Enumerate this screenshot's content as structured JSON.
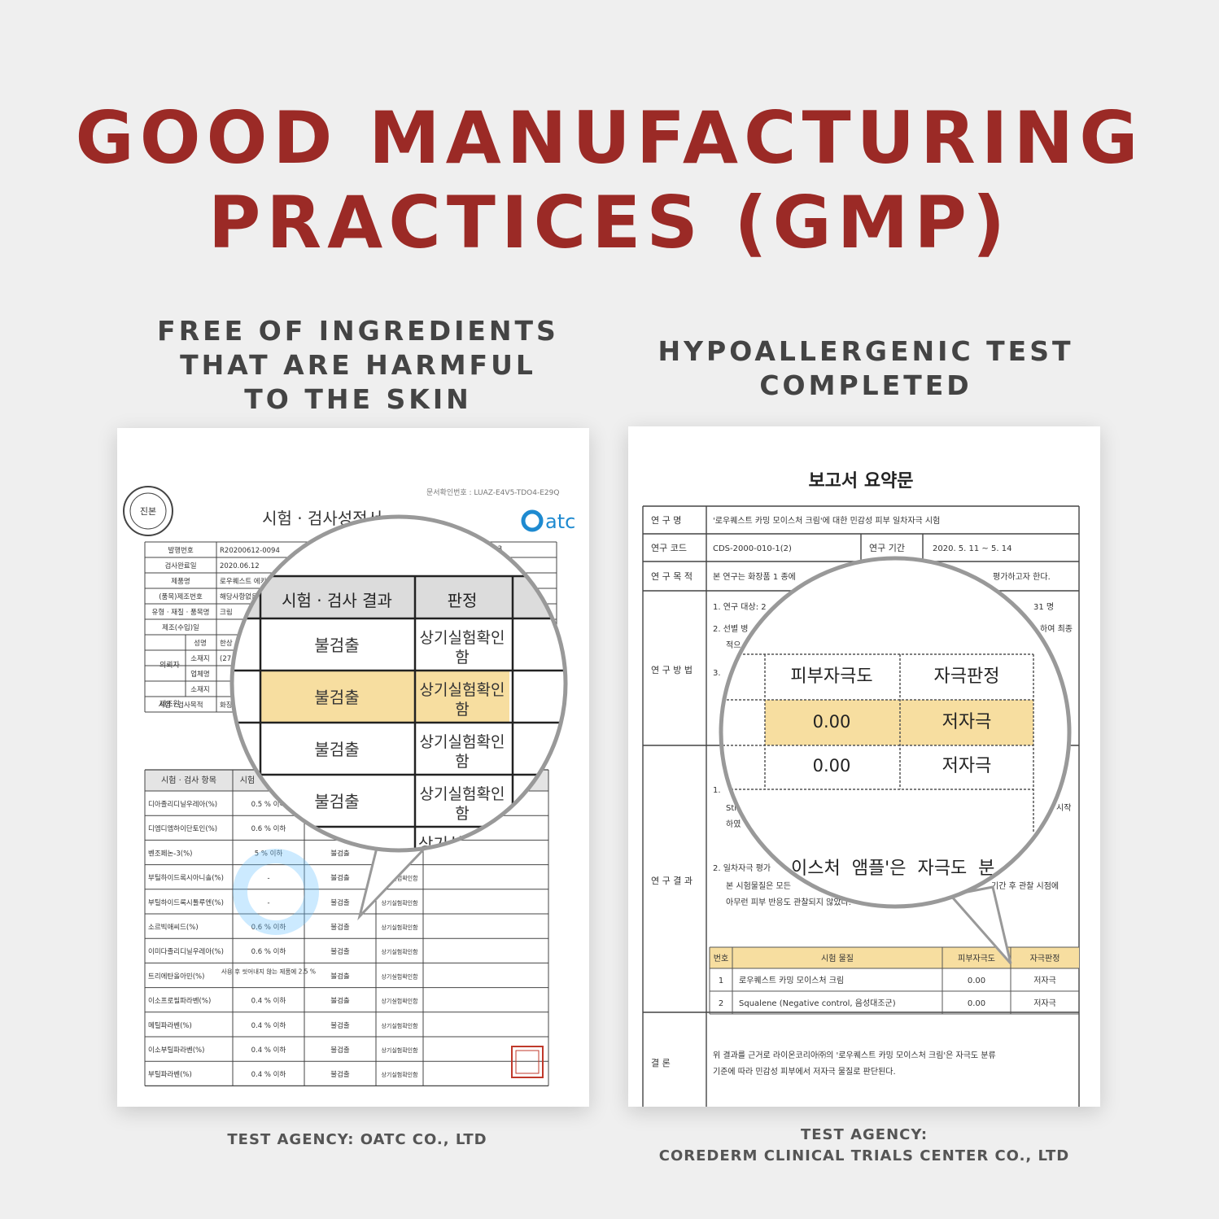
{
  "headline": {
    "line1": "GOOD MANUFACTURING",
    "line2": "PRACTICES (GMP)"
  },
  "left_panel": {
    "subtitle_lines": [
      "FREE OF INGREDIENTS",
      "THAT ARE HARMFUL",
      "TO THE SKIN"
    ],
    "agency": "TEST AGENCY: OATC CO., LTD",
    "document": {
      "doc_number": "문서확인번호 : LUAZ-E4V5-TDO4-E29Q",
      "title": "시험 · 검사성적서",
      "logo_text": "atc",
      "seal_text": "진본",
      "top_rows": [
        {
          "label": "발행번호",
          "value": "R20200612-0094"
        },
        {
          "label": "검사완료일",
          "value": "2020.06.12"
        },
        {
          "label": "제품명",
          "value": "로우퀘스트 에키나..."
        },
        {
          "label": "(품목)제조번호",
          "value": "해당사항없음"
        },
        {
          "label": "유형 · 재질 · 품목명",
          "value": "크림"
        },
        {
          "label": "제조(수입)일",
          "value": ""
        },
        {
          "label": "성명",
          "value": "한상"
        },
        {
          "label": "소재지",
          "value": "(27"
        },
        {
          "label": "업체명",
          "value": ""
        },
        {
          "label": "소재지",
          "value": ""
        },
        {
          "label": "시험 · 검사목적",
          "value": "화장"
        }
      ],
      "side_labels": [
        "의뢰자",
        "제조원"
      ],
      "header_fragment": "003",
      "table_header": [
        "시험 · 검사 항목",
        "시험",
        "",
        ""
      ],
      "rows": [
        {
          "item": "디아졸리디닐우레아(%)",
          "std": "0.5 % 이하",
          "result": "불검출",
          "judge": "상기실험확인함"
        },
        {
          "item": "디엠디엠하이단토인(%)",
          "std": "0.6 % 이하",
          "result": "불검출",
          "judge": "상기실험확인함"
        },
        {
          "item": "벤조페논-3(%)",
          "std": "5 % 이하",
          "result": "불검출",
          "judge": "상기실험확인함"
        },
        {
          "item": "부틸하이드록시아니솔(%)",
          "std": "-",
          "result": "불검출",
          "judge": "상기실험확인함"
        },
        {
          "item": "부틸하이드록시톨루엔(%)",
          "std": "-",
          "result": "불검출",
          "judge": "상기실험확인함"
        },
        {
          "item": "소르빅애씨드(%)",
          "std": "0.6 % 이하",
          "result": "불검출",
          "judge": "상기실험확인함"
        },
        {
          "item": "이미다졸리디닐우레아(%)",
          "std": "0.6 % 이하",
          "result": "불검출",
          "judge": "상기실험확인함"
        },
        {
          "item": "트리에탄올아민(%)",
          "std": "사용 후 씻어내지 않는 제품에 2.5 %",
          "result": "불검출",
          "judge": "상기실험확인함"
        },
        {
          "item": "이소프로필파라벤(%)",
          "std": "0.4 % 이하",
          "result": "불검출",
          "judge": "상기실험확인함"
        },
        {
          "item": "메틸파라벤(%)",
          "std": "0.4 % 이하",
          "result": "불검출",
          "judge": "상기실험확인함"
        },
        {
          "item": "이소부틸파라벤(%)",
          "std": "0.4 % 이하",
          "result": "불검출",
          "judge": "상기실험확인함"
        },
        {
          "item": "부틸파라벤(%)",
          "std": "0.4 % 이하",
          "result": "불검출",
          "judge": "상기실험확인함"
        }
      ],
      "magnifier": {
        "header": [
          "시험 · 검사 결과",
          "판정"
        ],
        "rows": [
          {
            "result": "불검출",
            "judge1": "상기실험확인",
            "judge2": "함"
          },
          {
            "result": "불검출",
            "judge1": "상기실험확인",
            "judge2": "함",
            "highlight": true
          },
          {
            "result": "불검출",
            "judge1": "상기실험확인",
            "judge2": "함"
          },
          {
            "result": "불검출",
            "judge1": "상기실험확인",
            "judge2": "함"
          }
        ],
        "bottom_fragment": "상기실"
      }
    }
  },
  "right_panel": {
    "subtitle_lines": [
      "HYPOALLERGENIC TEST",
      "COMPLETED"
    ],
    "agency_lines": [
      "TEST AGENCY:",
      "COREDERM CLINICAL TRIALS CENTER CO., LTD"
    ],
    "document": {
      "title": "보고서 요약문",
      "rows": {
        "study_name_label": "연 구 명",
        "study_name": "'로우퀘스트 카밍 모이스처 크림'에 대한 민감성 피부 일차자극 시험",
        "code_label": "연구 코드",
        "code": "CDS-2000-010-1(2)",
        "period_label": "연구 기간",
        "period": "2020. 5. 11 ~ 5. 14",
        "purpose_label": "연 구 목 적",
        "purpose_start": "본 연구는 화장품 1 종에",
        "purpose_end": "평가하고자 한다.",
        "method_label": "연 구 방 법",
        "method_1": "1. 연구 대상: 2",
        "method_1_end": "31 명",
        "method_2": "2. 선별 병",
        "method_2_end": "하여 최종",
        "method_2b": "적으",
        "method_3": "3.",
        "result_label": "연 구 결 과",
        "result_1": "1.",
        "result_1b": "Sti",
        "result_1b_end": "시작",
        "result_1c": "하였",
        "result_2": "2. 일차자극 평가",
        "result_2b": "본 시험물질은 모든",
        "result_2b_end": "기간 후 관찰 시점에",
        "result_2c": "아무런 피부 반응도 관찰되지 않았다.",
        "conclusion_label": "결 론",
        "conclusion_1": "위 결과를 근거로 라이온코리아㈜의 '로우퀘스트 카밍 모이스처 크림'은 자극도 분류",
        "conclusion_2": "기준에 따라 민감성 피부에서 저자극 물질로 판단된다."
      },
      "result_table": {
        "header": [
          "번호",
          "시험 물질",
          "피부자극도",
          "자극판정"
        ],
        "rows": [
          [
            "1",
            "로우퀘스트 카밍 모이스처 크림",
            "0.00",
            "저자극"
          ],
          [
            "2",
            "Squalene (Negative control, 음성대조군)",
            "0.00",
            "저자극"
          ]
        ]
      },
      "magnifier": {
        "header": [
          "피부자극도",
          "자극판정"
        ],
        "rows": [
          [
            "0.00",
            "저자극"
          ],
          [
            "0.00",
            "저자극"
          ]
        ],
        "bottom_fragment": "이스처  앰플'은  자극도  분"
      }
    }
  },
  "colors": {
    "headline": "#9b2a26",
    "subtitle": "#444444",
    "highlight": "#f7dea0",
    "atc_blue": "#1e8ad0",
    "seal_red": "#c0392b"
  }
}
